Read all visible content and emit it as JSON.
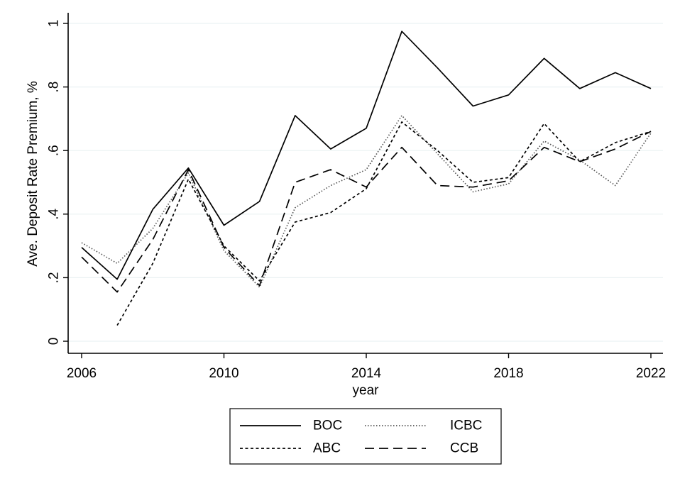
{
  "chart_data": {
    "type": "line",
    "title": "",
    "xlabel": "year",
    "ylabel": "Ave. Deposit Rate Premium, %",
    "xlim": [
      2006,
      2022
    ],
    "ylim": [
      0,
      1
    ],
    "x_ticks": [
      2006,
      2010,
      2014,
      2018,
      2022
    ],
    "x_tick_labels": [
      "2006",
      "2010",
      "2014",
      "2018",
      "2022"
    ],
    "y_ticks": [
      0,
      0.2,
      0.4,
      0.6,
      0.8,
      1
    ],
    "y_tick_labels": [
      "0",
      ".2",
      ".4",
      ".6",
      ".8",
      "1"
    ],
    "grid": "horizontal",
    "legend_position": "bottom",
    "x": [
      2006,
      2007,
      2008,
      2009,
      2010,
      2011,
      2012,
      2013,
      2014,
      2015,
      2016,
      2017,
      2018,
      2019,
      2020,
      2021,
      2022
    ],
    "series": [
      {
        "name": "BOC",
        "style": "solid",
        "color": "#000000",
        "values": [
          0.295,
          0.195,
          0.415,
          0.545,
          0.365,
          0.44,
          0.71,
          0.605,
          0.67,
          0.975,
          0.86,
          0.74,
          0.775,
          0.89,
          0.795,
          0.845,
          0.795
        ]
      },
      {
        "name": "ICBC",
        "style": "dotted",
        "color": "#555555",
        "values": [
          0.31,
          0.245,
          0.355,
          0.53,
          0.285,
          0.17,
          0.42,
          0.49,
          0.54,
          0.71,
          0.59,
          0.47,
          0.495,
          0.63,
          0.57,
          0.49,
          0.655
        ]
      },
      {
        "name": "ABC",
        "style": "short-dash",
        "color": "#000000",
        "values": [
          null,
          0.05,
          0.245,
          0.51,
          0.3,
          0.19,
          0.375,
          0.405,
          0.48,
          0.69,
          0.6,
          0.5,
          0.515,
          0.685,
          0.565,
          0.625,
          0.66
        ]
      },
      {
        "name": "CCB",
        "style": "long-dash",
        "color": "#000000",
        "values": [
          0.265,
          0.155,
          0.32,
          0.54,
          0.295,
          0.175,
          0.5,
          0.54,
          0.485,
          0.61,
          0.49,
          0.485,
          0.505,
          0.61,
          0.565,
          0.605,
          0.66
        ]
      }
    ]
  }
}
